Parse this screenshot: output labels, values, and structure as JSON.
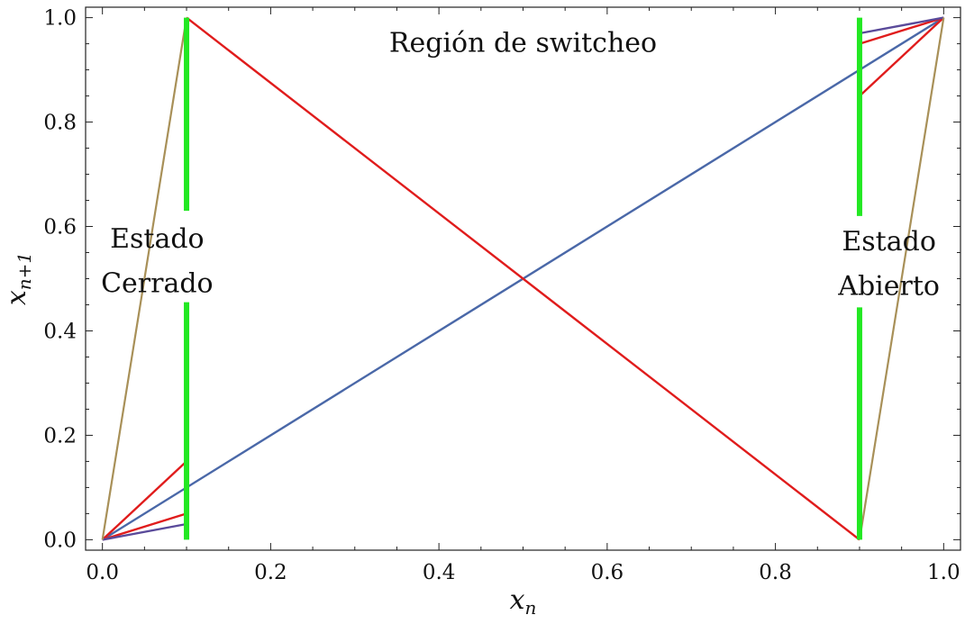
{
  "chart_data": {
    "type": "line",
    "title": "",
    "xlabel": {
      "main": "x",
      "sub": "n"
    },
    "ylabel": {
      "main": "x",
      "sub": "n+1"
    },
    "xlim": [
      -0.02,
      1.02
    ],
    "ylim": [
      -0.02,
      1.02
    ],
    "x_ticks": [
      "0.0",
      "0.2",
      "0.4",
      "0.6",
      "0.8",
      "1.0"
    ],
    "y_ticks": [
      "0.0",
      "0.2",
      "0.4",
      "0.6",
      "0.8",
      "1.0"
    ],
    "grid": false,
    "colors": {
      "identity": "#4a68a8",
      "red": "#e01c1c",
      "purple": "#5a4a9a",
      "olive": "#a89058",
      "green": "#22e822"
    },
    "series": [
      {
        "color_key": "identity",
        "points": [
          [
            0,
            0
          ],
          [
            1,
            1
          ]
        ]
      },
      {
        "color_key": "red",
        "points": [
          [
            0.1,
            1.0
          ],
          [
            0.9,
            0.0
          ]
        ]
      },
      {
        "color_key": "red",
        "points": [
          [
            0,
            0
          ],
          [
            0.1,
            0.15
          ]
        ]
      },
      {
        "color_key": "red",
        "points": [
          [
            0,
            0
          ],
          [
            0.1,
            0.05
          ]
        ]
      },
      {
        "color_key": "purple",
        "points": [
          [
            0,
            0
          ],
          [
            0.1,
            0.03
          ]
        ]
      },
      {
        "color_key": "olive",
        "points": [
          [
            0,
            0
          ],
          [
            0.1,
            1.0
          ]
        ]
      },
      {
        "color_key": "red",
        "points": [
          [
            0.9,
            0.85
          ],
          [
            1.0,
            1.0
          ]
        ]
      },
      {
        "color_key": "red",
        "points": [
          [
            0.9,
            0.95
          ],
          [
            1.0,
            1.0
          ]
        ]
      },
      {
        "color_key": "purple",
        "points": [
          [
            0.9,
            0.97
          ],
          [
            1.0,
            1.0
          ]
        ]
      },
      {
        "color_key": "olive",
        "points": [
          [
            0.9,
            0.0
          ],
          [
            1.0,
            1.0
          ]
        ]
      }
    ],
    "switching_lines": [
      {
        "x": 0.1,
        "segments": [
          [
            0.63,
            1.0
          ],
          [
            0.0,
            0.455
          ]
        ]
      },
      {
        "x": 0.9,
        "segments": [
          [
            0.62,
            1.0
          ],
          [
            0.0,
            0.445
          ]
        ]
      }
    ],
    "annotations": {
      "region": {
        "text": "Región de switcheo",
        "x": 0.5,
        "y": 0.955
      },
      "closed": {
        "lines": [
          "Estado",
          "Cerrado"
        ],
        "x": 0.065,
        "y": [
          0.58,
          0.495
        ]
      },
      "open": {
        "lines": [
          "Estado",
          "Abierto"
        ],
        "x": 0.935,
        "y": [
          0.575,
          0.49
        ]
      }
    }
  }
}
